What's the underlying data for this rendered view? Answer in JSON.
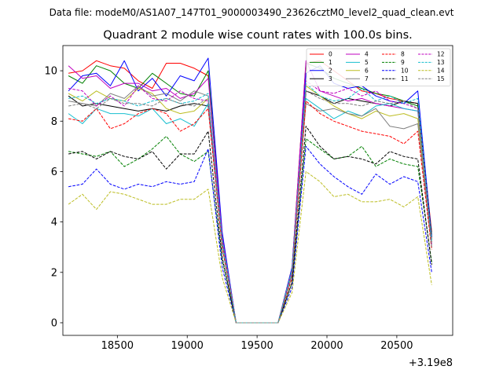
{
  "chart_data": {
    "type": "line",
    "suptitle": "Data file: modeM0/AS1A07_147T01_9000003490_23626cztM0_level2_quad_clean.evt",
    "title": "Quadrant 2 module wise count rates with 100.0s bins.",
    "xlabel": "",
    "ylabel": "",
    "x_offset_label": "+3.19e8",
    "xlim": [
      18110,
      20900
    ],
    "ylim": [
      -0.5,
      11.0
    ],
    "xticks": [
      18500,
      19000,
      19500,
      20000,
      20500
    ],
    "yticks": [
      0,
      2,
      4,
      6,
      8,
      10
    ],
    "grid": false,
    "legend": {
      "position": "top-right",
      "columns": 4
    },
    "x": [
      18150,
      18250,
      18350,
      18450,
      18550,
      18650,
      18750,
      18850,
      18950,
      19050,
      19150,
      19250,
      19350,
      19450,
      19550,
      19650,
      19750,
      19850,
      19950,
      20050,
      20150,
      20250,
      20350,
      20450,
      20550,
      20650,
      20750
    ],
    "series": [
      {
        "name": "0",
        "color": "#ff0000",
        "dash": "solid",
        "values": [
          9.9,
          10.0,
          10.4,
          10.2,
          10.1,
          9.6,
          9.3,
          10.3,
          10.3,
          10.1,
          9.8,
          3.5,
          0.0,
          0.0,
          0.0,
          0.0,
          2.2,
          10.3,
          10.4,
          10.0,
          9.6,
          9.2,
          9.1,
          8.9,
          8.8,
          8.7,
          3.6
        ]
      },
      {
        "name": "1",
        "color": "#008000",
        "dash": "solid",
        "values": [
          9.8,
          9.5,
          10.2,
          10.0,
          9.5,
          9.3,
          9.9,
          9.5,
          9.1,
          9.0,
          10.0,
          3.4,
          0.0,
          0.0,
          0.0,
          0.0,
          2.1,
          10.3,
          10.1,
          9.7,
          9.5,
          9.3,
          9.1,
          9.0,
          8.8,
          8.6,
          3.5
        ]
      },
      {
        "name": "2",
        "color": "#0000ff",
        "dash": "solid",
        "values": [
          9.2,
          9.8,
          9.9,
          9.4,
          10.4,
          9.2,
          9.7,
          9.0,
          9.8,
          9.6,
          10.5,
          3.6,
          0.0,
          0.0,
          0.0,
          0.0,
          2.2,
          9.9,
          10.2,
          9.5,
          9.3,
          9.4,
          9.0,
          8.8,
          8.7,
          9.2,
          3.4
        ]
      },
      {
        "name": "3",
        "color": "#000000",
        "dash": "solid",
        "values": [
          9.0,
          8.6,
          8.7,
          8.6,
          8.5,
          8.4,
          8.5,
          8.4,
          8.6,
          8.7,
          8.6,
          3.1,
          0.0,
          0.0,
          0.0,
          0.0,
          2.0,
          9.2,
          9.0,
          8.7,
          8.9,
          8.8,
          8.7,
          8.6,
          8.8,
          8.7,
          3.3
        ]
      },
      {
        "name": "4",
        "color": "#bf00bf",
        "dash": "solid",
        "values": [
          10.2,
          9.7,
          9.8,
          9.3,
          9.5,
          9.5,
          9.2,
          9.3,
          8.9,
          9.1,
          9.7,
          3.4,
          0.0,
          0.0,
          0.0,
          0.0,
          2.1,
          10.4,
          9.2,
          9.0,
          8.8,
          8.9,
          8.7,
          8.6,
          8.5,
          8.4,
          3.2
        ]
      },
      {
        "name": "5",
        "color": "#17becf",
        "dash": "solid",
        "values": [
          8.3,
          7.9,
          8.5,
          8.3,
          8.3,
          8.2,
          8.5,
          7.9,
          8.1,
          7.8,
          8.7,
          3.0,
          0.0,
          0.0,
          0.0,
          0.0,
          1.9,
          8.9,
          8.5,
          8.1,
          8.4,
          8.2,
          8.6,
          8.7,
          8.5,
          8.4,
          3.1
        ]
      },
      {
        "name": "6",
        "color": "#bcbd22",
        "dash": "solid",
        "values": [
          9.1,
          8.8,
          9.2,
          8.9,
          8.8,
          9.3,
          9.1,
          8.5,
          8.3,
          8.4,
          8.9,
          3.2,
          0.0,
          0.0,
          0.0,
          0.0,
          2.0,
          9.4,
          9.0,
          8.6,
          8.3,
          8.1,
          8.4,
          8.2,
          8.3,
          8.1,
          3.2
        ]
      },
      {
        "name": "7",
        "color": "#808080",
        "dash": "solid",
        "values": [
          8.8,
          8.7,
          8.6,
          9.1,
          8.9,
          9.4,
          9.0,
          9.1,
          8.8,
          9.2,
          9.0,
          3.3,
          0.0,
          0.0,
          0.0,
          0.0,
          2.1,
          8.7,
          8.4,
          8.5,
          8.3,
          8.2,
          8.5,
          7.8,
          7.7,
          7.9,
          3.0
        ]
      },
      {
        "name": "8",
        "color": "#ff0000",
        "dash": "dashed",
        "values": [
          8.1,
          8.0,
          8.5,
          7.7,
          7.9,
          8.3,
          8.5,
          8.3,
          7.6,
          7.9,
          8.5,
          3.0,
          0.0,
          0.0,
          0.0,
          0.0,
          1.8,
          8.8,
          8.3,
          8.0,
          7.8,
          7.6,
          7.5,
          7.4,
          7.1,
          7.6,
          2.9
        ]
      },
      {
        "name": "9",
        "color": "#008000",
        "dash": "dashed",
        "values": [
          6.8,
          6.7,
          6.6,
          6.8,
          6.2,
          6.5,
          6.9,
          7.4,
          6.7,
          6.4,
          6.8,
          2.5,
          0.0,
          0.0,
          0.0,
          0.0,
          1.6,
          7.3,
          6.9,
          6.5,
          6.6,
          7.0,
          6.2,
          6.5,
          6.3,
          6.2,
          2.4
        ]
      },
      {
        "name": "10",
        "color": "#0000ff",
        "dash": "dashed",
        "values": [
          5.4,
          5.5,
          6.1,
          5.5,
          5.3,
          5.5,
          5.4,
          5.6,
          5.5,
          5.6,
          6.9,
          2.2,
          0.0,
          0.0,
          0.0,
          0.0,
          1.4,
          7.0,
          6.3,
          5.8,
          5.4,
          5.1,
          5.9,
          5.5,
          5.8,
          5.6,
          2.0
        ]
      },
      {
        "name": "11",
        "color": "#000000",
        "dash": "dashed",
        "values": [
          6.7,
          6.8,
          6.5,
          6.8,
          6.6,
          6.5,
          6.8,
          6.1,
          6.7,
          6.7,
          7.6,
          2.6,
          0.0,
          0.0,
          0.0,
          0.0,
          1.6,
          7.8,
          7.0,
          6.5,
          6.6,
          6.5,
          6.3,
          6.8,
          6.6,
          6.5,
          2.3
        ]
      },
      {
        "name": "12",
        "color": "#bf00bf",
        "dash": "dashed",
        "values": [
          9.3,
          9.2,
          8.6,
          9.0,
          8.6,
          9.4,
          8.9,
          8.8,
          9.2,
          8.9,
          8.8,
          3.3,
          0.0,
          0.0,
          0.0,
          0.0,
          2.0,
          9.6,
          9.2,
          9.1,
          9.3,
          9.0,
          9.2,
          8.8,
          8.7,
          8.5,
          3.1
        ]
      },
      {
        "name": "13",
        "color": "#17becf",
        "dash": "dashed",
        "values": [
          8.9,
          9.0,
          8.7,
          8.9,
          8.8,
          8.6,
          8.8,
          8.9,
          8.7,
          8.8,
          9.1,
          3.3,
          0.0,
          0.0,
          0.0,
          0.0,
          2.1,
          9.5,
          9.0,
          8.8,
          8.9,
          9.3,
          8.8,
          9.0,
          8.7,
          8.9,
          3.2
        ]
      },
      {
        "name": "14",
        "color": "#bcbd22",
        "dash": "dashed",
        "values": [
          4.7,
          5.1,
          4.5,
          5.2,
          5.1,
          4.9,
          4.7,
          4.7,
          4.9,
          4.9,
          5.3,
          1.8,
          0.0,
          0.0,
          0.0,
          0.0,
          1.2,
          6.0,
          5.6,
          5.0,
          5.1,
          4.8,
          4.8,
          4.9,
          4.6,
          5.0,
          1.5
        ]
      },
      {
        "name": "15",
        "color": "#808080",
        "dash": "dashed",
        "values": [
          8.6,
          8.7,
          8.5,
          8.9,
          8.7,
          8.7,
          8.6,
          8.9,
          8.7,
          8.6,
          8.9,
          3.1,
          0.0,
          0.0,
          0.0,
          0.0,
          1.9,
          9.2,
          8.9,
          8.7,
          8.7,
          8.6,
          8.8,
          8.7,
          8.8,
          8.5,
          3.0
        ]
      }
    ]
  }
}
